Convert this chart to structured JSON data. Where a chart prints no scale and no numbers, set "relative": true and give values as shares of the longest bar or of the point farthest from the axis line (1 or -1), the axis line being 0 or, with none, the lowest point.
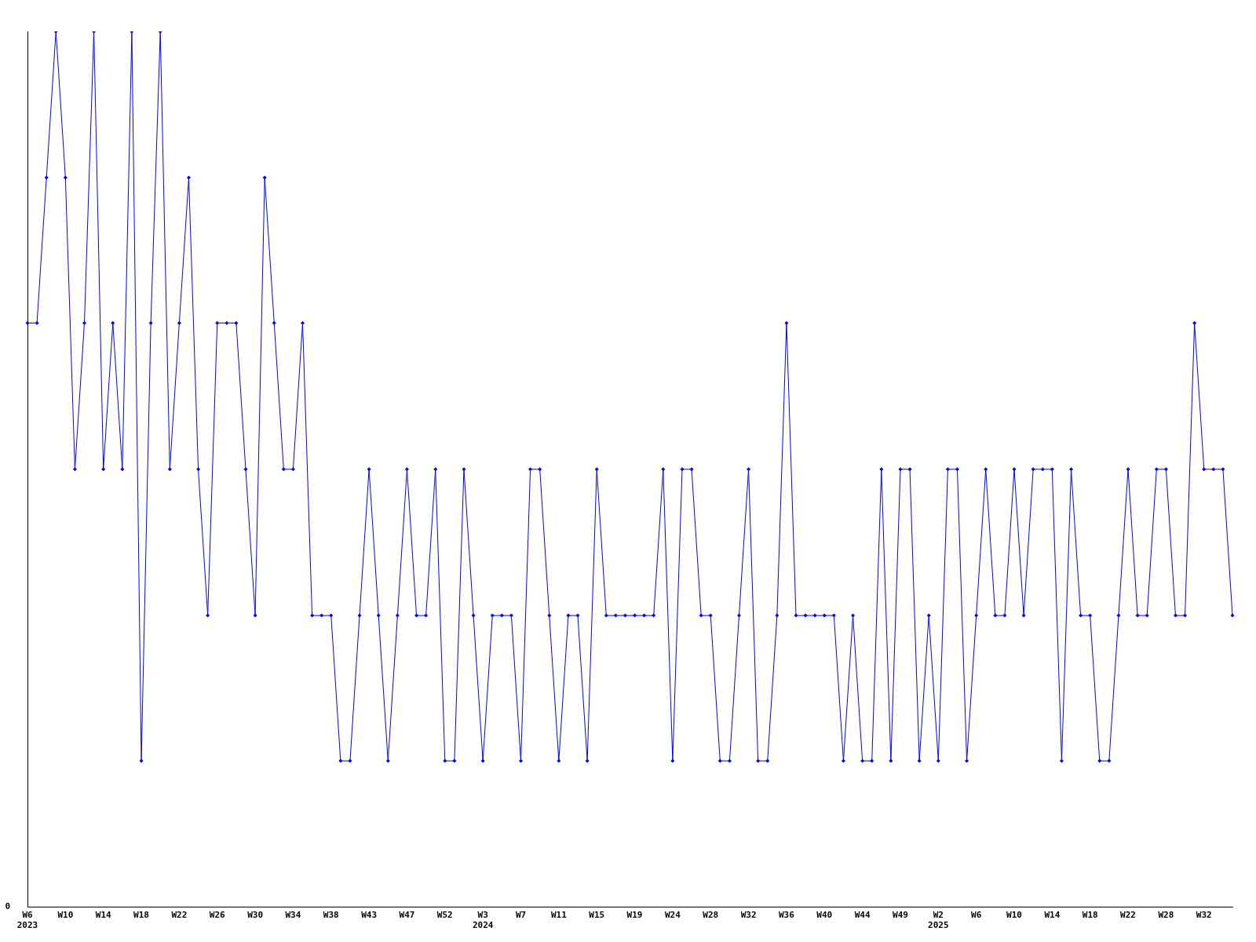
{
  "chart_data": {
    "type": "line",
    "relative": true,
    "categories": [
      "W6\n2023",
      null,
      null,
      null,
      "W10",
      null,
      null,
      null,
      "W14",
      null,
      null,
      null,
      "W18",
      null,
      null,
      null,
      "W22",
      null,
      null,
      null,
      "W26",
      null,
      null,
      null,
      "W30",
      null,
      null,
      null,
      "W34",
      null,
      null,
      null,
      "W38",
      null,
      null,
      null,
      "W43",
      null,
      null,
      null,
      "W47",
      null,
      null,
      null,
      "W52",
      null,
      null,
      null,
      "W3\n2024",
      null,
      null,
      null,
      "W7",
      null,
      null,
      null,
      "W11",
      null,
      null,
      null,
      "W15",
      null,
      null,
      null,
      "W19",
      null,
      null,
      null,
      "W24",
      null,
      null,
      null,
      "W28",
      null,
      null,
      null,
      "W32",
      null,
      null,
      null,
      "W36",
      null,
      null,
      null,
      "W40",
      null,
      null,
      null,
      "W44",
      null,
      null,
      null,
      "W49",
      null,
      null,
      null,
      "W2\n2025",
      null,
      null,
      null,
      "W6",
      null,
      null,
      null,
      "W10",
      null,
      null,
      null,
      "W14",
      null,
      null,
      null,
      "W18",
      null,
      null,
      null,
      "W22",
      null,
      null,
      null,
      "W28",
      null,
      null,
      null,
      "W32",
      null,
      null,
      null
    ],
    "series": [
      {
        "color": "#0000ff",
        "values": [
          0.667,
          0.667,
          0.833,
          1,
          0.833,
          0.5,
          0.667,
          1,
          0.5,
          0.667,
          0.5,
          1,
          0.167,
          0.667,
          1,
          0.5,
          0.667,
          0.833,
          0.5,
          0.333,
          0.667,
          0.667,
          0.667,
          0.5,
          0.333,
          0.833,
          0.667,
          0.5,
          0.5,
          0.667,
          0.333,
          0.333,
          0.333,
          0.167,
          0.167,
          0.333,
          0.5,
          0.333,
          0.167,
          0.333,
          0.5,
          0.333,
          0.333,
          0.5,
          0.167,
          0.167,
          0.5,
          0.333,
          0.167,
          0.333,
          0.333,
          0.333,
          0.167,
          0.5,
          0.5,
          0.333,
          0.167,
          0.333,
          0.333,
          0.167,
          0.5,
          0.333,
          0.333,
          0.333,
          0.333,
          0.333,
          0.333,
          0.5,
          0.167,
          0.5,
          0.5,
          0.333,
          0.333,
          0.167,
          0.167,
          0.333,
          0.5,
          0.167,
          0.167,
          0.333,
          0.667,
          0.333,
          0.333,
          0.333,
          0.333,
          0.333,
          0.167,
          0.333,
          0.167,
          0.167,
          0.5,
          0.167,
          0.5,
          0.5,
          0.167,
          0.333,
          0.167,
          0.5,
          0.5,
          0.167,
          0.333,
          0.5,
          0.333,
          0.333,
          0.5,
          0.333,
          0.5,
          0.5,
          0.5,
          0.167,
          0.5,
          0.333,
          0.333,
          0.167,
          0.167,
          0.333,
          0.5,
          0.333,
          0.333,
          0.5,
          0.5,
          0.333,
          0.333,
          0.667,
          0.5,
          0.5,
          0.5,
          0.333
        ]
      }
    ],
    "annotations": [
      "0"
    ],
    "marker": "diamond",
    "line_style": "solid",
    "grid": false,
    "legend": false
  }
}
